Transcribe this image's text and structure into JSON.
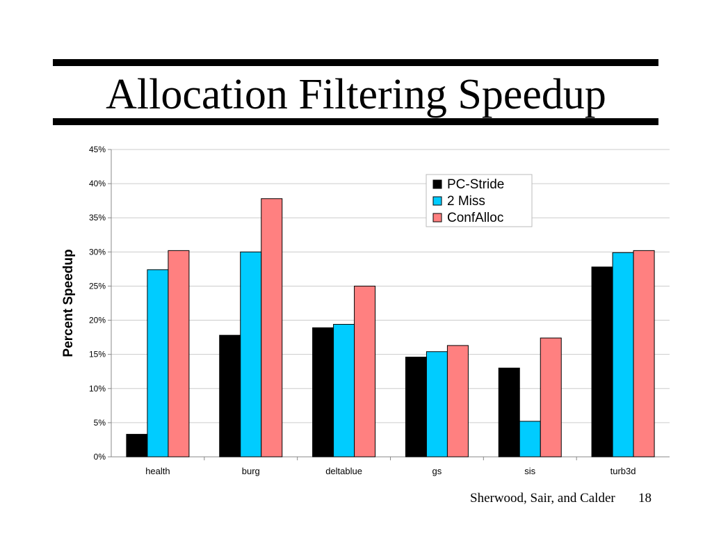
{
  "slide": {
    "title": "Allocation Filtering Speedup",
    "footer_credit": "Sherwood, Sair, and Calder",
    "page_number": "18"
  },
  "chart_data": {
    "type": "bar",
    "title": "",
    "xlabel": "",
    "ylabel": "Percent Speedup",
    "categories": [
      "health",
      "burg",
      "deltablue",
      "gs",
      "sis",
      "turb3d"
    ],
    "series": [
      {
        "name": "PC-Stride",
        "color": "#000000",
        "values": [
          3.3,
          17.8,
          18.9,
          14.6,
          13.0,
          27.8
        ]
      },
      {
        "name": "2 Miss",
        "color": "#00CCFF",
        "values": [
          27.4,
          30.0,
          19.4,
          15.4,
          5.2,
          29.9
        ]
      },
      {
        "name": "ConfAlloc",
        "color": "#FF8080",
        "values": [
          30.2,
          37.8,
          25.0,
          16.3,
          17.4,
          30.2
        ]
      }
    ],
    "ylim": [
      0,
      45
    ],
    "yticks": [
      "0%",
      "5%",
      "10%",
      "15%",
      "20%",
      "25%",
      "30%",
      "35%",
      "40%",
      "45%"
    ],
    "grid": true,
    "legend": "top-right"
  }
}
